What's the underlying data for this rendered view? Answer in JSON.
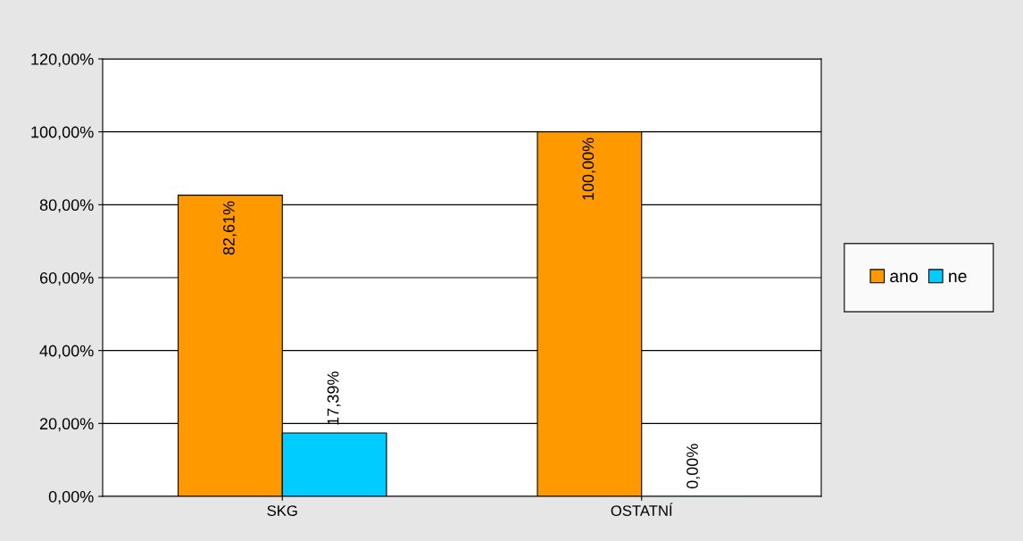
{
  "chart_data": {
    "type": "bar",
    "categories": [
      "SKG",
      "OSTATNÍ"
    ],
    "series": [
      {
        "name": "ano",
        "color": "#ff9900",
        "values": [
          82.61,
          100.0
        ],
        "value_labels": [
          "82,61%",
          "100,00%"
        ]
      },
      {
        "name": "ne",
        "color": "#00ccff",
        "values": [
          17.39,
          0.0
        ],
        "value_labels": [
          "17,39%",
          "0,00%"
        ]
      }
    ],
    "ylim": [
      0,
      120
    ],
    "yticks": [
      {
        "value": 0,
        "label": "0,00%"
      },
      {
        "value": 20,
        "label": "20,00%"
      },
      {
        "value": 40,
        "label": "40,00%"
      },
      {
        "value": 60,
        "label": "60,00%"
      },
      {
        "value": 80,
        "label": "80,00%"
      },
      {
        "value": 100,
        "label": "100,00%"
      },
      {
        "value": 120,
        "label": "120,00%"
      }
    ],
    "grid": "y",
    "legend": "right"
  }
}
